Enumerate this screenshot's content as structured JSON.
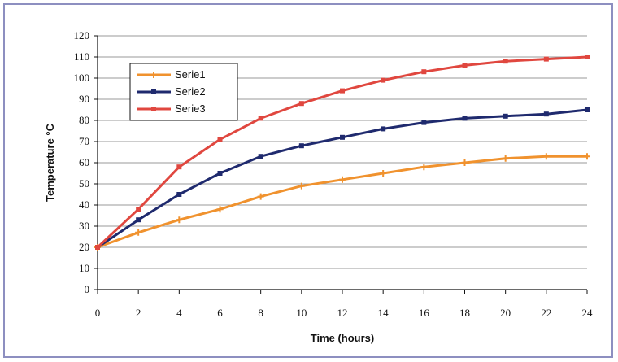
{
  "chart_data": {
    "type": "line",
    "title": "",
    "xlabel": "Time (hours)",
    "ylabel": "Temperature °C",
    "x": [
      0,
      2,
      4,
      6,
      8,
      10,
      12,
      14,
      16,
      18,
      20,
      22,
      24
    ],
    "xticks": [
      0,
      2,
      4,
      6,
      8,
      10,
      12,
      14,
      16,
      18,
      20,
      22,
      24
    ],
    "yticks": [
      0,
      10,
      20,
      30,
      40,
      50,
      60,
      70,
      80,
      90,
      100,
      110,
      120
    ],
    "xlim": [
      0,
      24
    ],
    "ylim": [
      0,
      120
    ],
    "grid": "horizontal",
    "legend": "top-left",
    "series": [
      {
        "name": "Serie1",
        "color": "#f0922e",
        "marker": "plus",
        "values": [
          20,
          27,
          33,
          38,
          44,
          49,
          52,
          55,
          58,
          60,
          62,
          63,
          63
        ]
      },
      {
        "name": "Serie2",
        "color": "#1f2a6e",
        "marker": "square",
        "values": [
          20,
          33,
          45,
          55,
          63,
          68,
          72,
          76,
          79,
          81,
          82,
          83,
          85
        ]
      },
      {
        "name": "Serie3",
        "color": "#e0473f",
        "marker": "square",
        "values": [
          20,
          38,
          58,
          71,
          81,
          88,
          94,
          99,
          103,
          106,
          108,
          109,
          110
        ]
      }
    ]
  }
}
